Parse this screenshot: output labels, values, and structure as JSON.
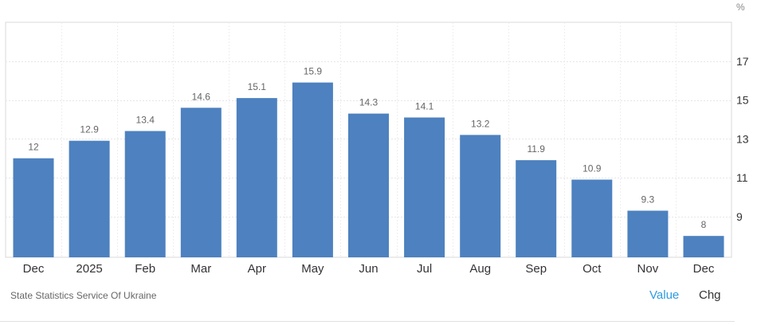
{
  "chart_data": {
    "type": "bar",
    "categories": [
      "Dec",
      "2025",
      "Feb",
      "Mar",
      "Apr",
      "May",
      "Jun",
      "Jul",
      "Aug",
      "Sep",
      "Oct",
      "Nov",
      "Dec"
    ],
    "values": [
      12,
      12.9,
      13.4,
      14.6,
      15.1,
      15.9,
      14.3,
      14.1,
      13.2,
      11.9,
      10.9,
      9.3,
      8
    ],
    "data_labels": [
      "12",
      "12.9",
      "13.4",
      "14.6",
      "15.1",
      "15.9",
      "14.3",
      "14.1",
      "13.2",
      "11.9",
      "10.9",
      "9.3",
      "8"
    ],
    "y_ticks": [
      9,
      11,
      13,
      15,
      17
    ],
    "ylim": [
      6.9,
      19
    ],
    "y_unit": "%",
    "y_axis_side": "right",
    "grid": true,
    "bar_color": "#4d81bf",
    "title": "",
    "xlabel": "",
    "ylabel": ""
  },
  "footer": {
    "source": "State Statistics Service Of Ukraine",
    "toggles": {
      "value_label": "Value",
      "chg_label": "Chg"
    }
  },
  "colors": {
    "accent": "#2d9be0",
    "bar": "#4d81bf"
  }
}
